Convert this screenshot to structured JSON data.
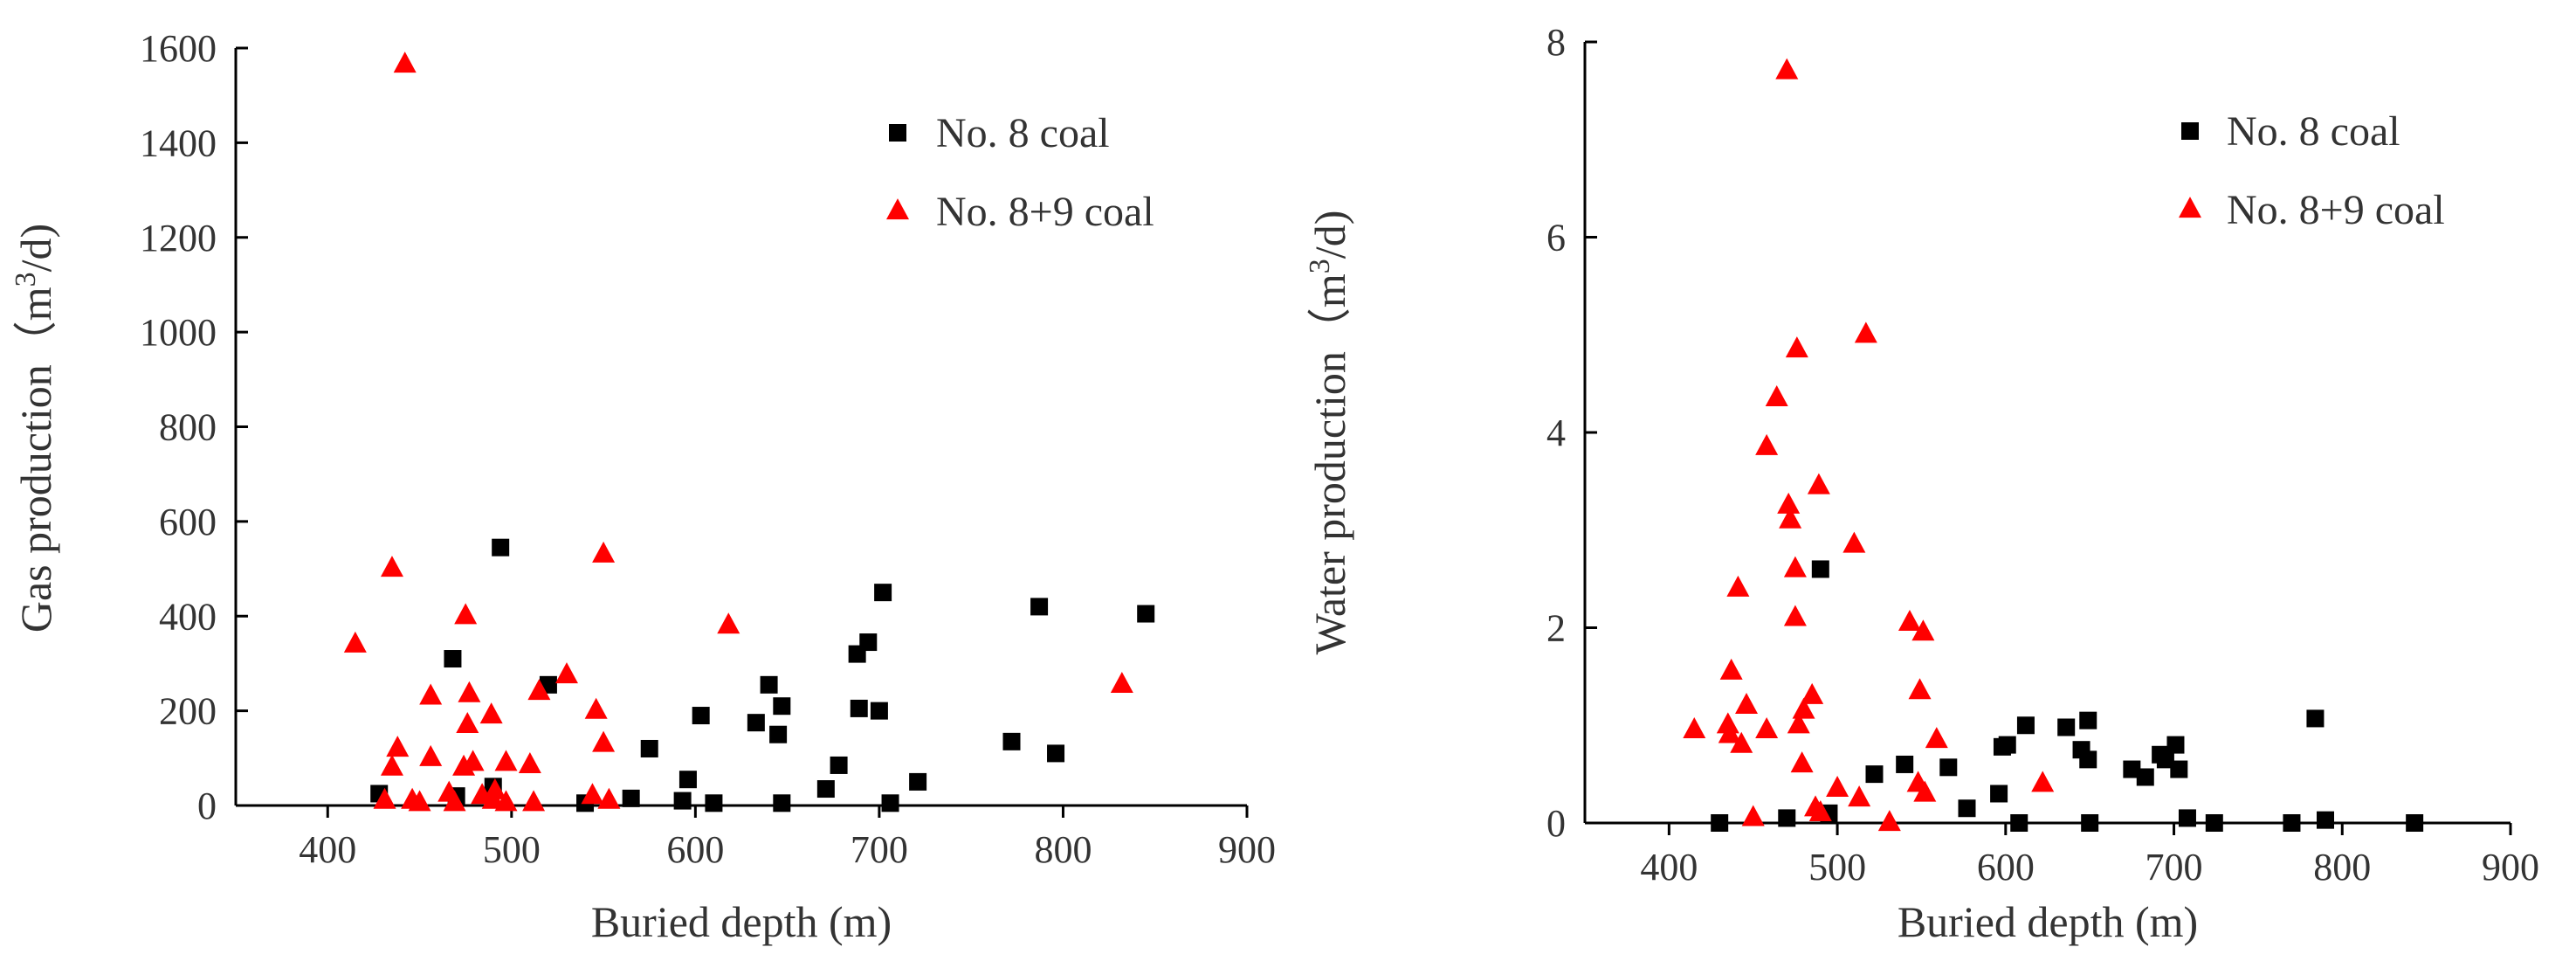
{
  "chart_data": [
    {
      "type": "scatter",
      "title": "",
      "xlabel": "Buried depth (m)",
      "ylabel": "Gas production（m",
      "ylabel_sup": "3",
      "ylabel_tail": "/d)",
      "xlim": [
        350,
        900
      ],
      "ylim": [
        0,
        1600
      ],
      "xticks": [
        "400",
        "500",
        "600",
        "700",
        "800",
        "900"
      ],
      "yticks": [
        "0",
        "200",
        "400",
        "600",
        "800",
        "1000",
        "1200",
        "1400",
        "1600"
      ],
      "legend_position": "top-right",
      "series": [
        {
          "name": "No. 8 coal",
          "marker": "square",
          "color": "#000000",
          "points": [
            [
              428,
              25
            ],
            [
              468,
              310
            ],
            [
              470,
              20
            ],
            [
              490,
              40
            ],
            [
              494,
              545
            ],
            [
              520,
              255
            ],
            [
              540,
              5
            ],
            [
              565,
              15
            ],
            [
              575,
              120
            ],
            [
              593,
              10
            ],
            [
              596,
              55
            ],
            [
              603,
              190
            ],
            [
              610,
              5
            ],
            [
              633,
              175
            ],
            [
              640,
              255
            ],
            [
              645,
              150
            ],
            [
              647,
              210
            ],
            [
              647,
              5
            ],
            [
              671,
              35
            ],
            [
              678,
              85
            ],
            [
              688,
              320
            ],
            [
              689,
              205
            ],
            [
              694,
              345
            ],
            [
              700,
              200
            ],
            [
              702,
              450
            ],
            [
              706,
              5
            ],
            [
              721,
              50
            ],
            [
              772,
              135
            ],
            [
              787,
              420
            ],
            [
              796,
              110
            ],
            [
              845,
              405
            ]
          ]
        },
        {
          "name": "No. 8+9  coal",
          "marker": "triangle",
          "color": "#ff0000",
          "points": [
            [
              415,
              340
            ],
            [
              431,
              10
            ],
            [
              435,
              500
            ],
            [
              435,
              80
            ],
            [
              438,
              120
            ],
            [
              442,
              1565
            ],
            [
              446,
              10
            ],
            [
              450,
              5
            ],
            [
              456,
              230
            ],
            [
              456,
              100
            ],
            [
              466,
              25
            ],
            [
              469,
              5
            ],
            [
              474,
              80
            ],
            [
              475,
              400
            ],
            [
              476,
              170
            ],
            [
              477,
              235
            ],
            [
              479,
              90
            ],
            [
              484,
              20
            ],
            [
              489,
              190
            ],
            [
              490,
              10
            ],
            [
              491,
              30
            ],
            [
              497,
              90
            ],
            [
              497,
              5
            ],
            [
              510,
              85
            ],
            [
              512,
              5
            ],
            [
              515,
              240
            ],
            [
              530,
              275
            ],
            [
              544,
              20
            ],
            [
              546,
              200
            ],
            [
              550,
              530
            ],
            [
              550,
              130
            ],
            [
              553,
              10
            ],
            [
              618,
              380
            ],
            [
              832,
              255
            ]
          ]
        }
      ]
    },
    {
      "type": "scatter",
      "title": "",
      "xlabel": "Buried depth (m)",
      "ylabel": "Water  production（m",
      "ylabel_sup": "3",
      "ylabel_tail": "/d)",
      "xlim": [
        350,
        900
      ],
      "ylim": [
        0,
        8
      ],
      "xticks": [
        "400",
        "500",
        "600",
        "700",
        "800",
        "900"
      ],
      "yticks": [
        "0",
        "2",
        "4",
        "6",
        "8"
      ],
      "legend_position": "top-right",
      "series": [
        {
          "name": "No. 8 coal",
          "marker": "square",
          "color": "#000000",
          "points": [
            [
              430,
              0.0
            ],
            [
              470,
              0.05
            ],
            [
              490,
              2.6
            ],
            [
              495,
              0.1
            ],
            [
              522,
              0.5
            ],
            [
              540,
              0.6
            ],
            [
              566,
              0.57
            ],
            [
              577,
              0.15
            ],
            [
              596,
              0.3
            ],
            [
              598,
              0.78
            ],
            [
              601,
              0.8
            ],
            [
              608,
              0.0
            ],
            [
              612,
              1.0
            ],
            [
              636,
              0.98
            ],
            [
              645,
              0.75
            ],
            [
              649,
              1.05
            ],
            [
              649,
              0.65
            ],
            [
              650,
              0.0
            ],
            [
              675,
              0.55
            ],
            [
              683,
              0.47
            ],
            [
              692,
              0.7
            ],
            [
              695,
              0.65
            ],
            [
              701,
              0.8
            ],
            [
              703,
              0.55
            ],
            [
              708,
              0.05
            ],
            [
              724,
              0.0
            ],
            [
              770,
              0.0
            ],
            [
              784,
              1.07
            ],
            [
              790,
              0.03
            ],
            [
              843,
              0.0
            ]
          ]
        },
        {
          "name": "No. 8+9  coal",
          "marker": "triangle",
          "color": "#ff0000",
          "points": [
            [
              415,
              0.95
            ],
            [
              435,
              1.0
            ],
            [
              436,
              0.9
            ],
            [
              437,
              1.55
            ],
            [
              441,
              2.4
            ],
            [
              443,
              0.8
            ],
            [
              446,
              1.2
            ],
            [
              450,
              0.05
            ],
            [
              458,
              0.95
            ],
            [
              458,
              3.85
            ],
            [
              464,
              4.35
            ],
            [
              470,
              7.7
            ],
            [
              471,
              3.25
            ],
            [
              472,
              3.1
            ],
            [
              475,
              2.6
            ],
            [
              475,
              2.1
            ],
            [
              476,
              4.85
            ],
            [
              477,
              1.0
            ],
            [
              479,
              0.6
            ],
            [
              480,
              1.15
            ],
            [
              485,
              1.3
            ],
            [
              487,
              0.15
            ],
            [
              489,
              3.45
            ],
            [
              490,
              0.1
            ],
            [
              500,
              0.35
            ],
            [
              510,
              2.85
            ],
            [
              513,
              0.25
            ],
            [
              517,
              5.0
            ],
            [
              531,
              0.0
            ],
            [
              543,
              2.05
            ],
            [
              548,
              0.4
            ],
            [
              549,
              1.35
            ],
            [
              551,
              1.95
            ],
            [
              552,
              0.3
            ],
            [
              559,
              0.85
            ],
            [
              622,
              0.4
            ]
          ]
        }
      ]
    }
  ]
}
